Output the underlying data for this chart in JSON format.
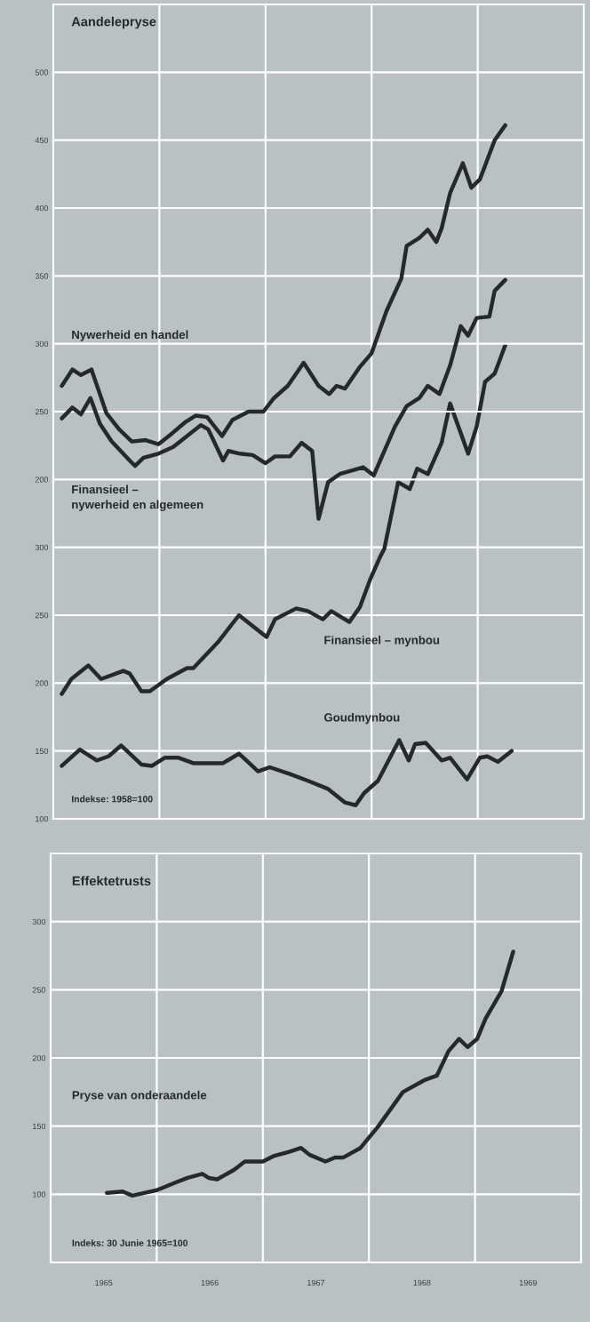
{
  "chart_data": [
    {
      "type": "line",
      "title": "Aandelepryse",
      "annotations": [
        "Indekse: 1958=100"
      ],
      "xlim": [
        1965,
        1970
      ],
      "ylim": [
        100,
        700
      ],
      "yticks": [
        100,
        150,
        200,
        250,
        300
      ],
      "y2lim": [
        -50,
        550
      ],
      "y2ticks": [
        200,
        250,
        300,
        350,
        400,
        450,
        500
      ],
      "xticks": [
        {
          "value": 1966,
          "label": null
        },
        {
          "value": 1967,
          "label": null
        },
        {
          "value": 1968,
          "label": null
        },
        {
          "value": 1969,
          "label": null
        }
      ],
      "tick_labels": "y",
      "grid": true,
      "legend": false,
      "line_style": "solid",
      "series": [
        {
          "name": "Nywerheid en handel",
          "color": "#26292b",
          "axis": "y2",
          "x": [
            1965.08,
            1965.18,
            1965.26,
            1965.36,
            1965.43,
            1965.5,
            1965.62,
            1965.74,
            1965.87,
            1965.99,
            1966.12,
            1966.24,
            1966.34,
            1966.45,
            1966.59,
            1966.69,
            1966.84,
            1966.98,
            1967.08,
            1967.21,
            1967.36,
            1967.5,
            1967.6,
            1967.67,
            1967.75,
            1967.89,
            1968.0,
            1968.14,
            1968.28,
            1968.33,
            1968.45,
            1968.53,
            1968.61,
            1968.66,
            1968.74,
            1968.86,
            1968.94,
            1969.02,
            1969.16,
            1969.26
          ],
          "values": [
            269,
            281,
            277,
            281,
            265,
            249,
            237,
            228,
            229,
            226,
            234,
            242,
            247,
            246,
            232,
            244,
            250,
            250,
            260,
            269,
            286,
            269,
            263,
            269,
            267,
            283,
            293,
            324,
            348,
            372,
            378,
            384,
            375,
            385,
            411,
            433,
            415,
            421,
            450,
            461
          ]
        },
        {
          "name": "Finansieel –\nnywerheid en algemeen",
          "color": "#26292b",
          "axis": "y2",
          "x": [
            1965.08,
            1965.18,
            1965.26,
            1965.35,
            1965.44,
            1965.55,
            1965.72,
            1965.77,
            1965.85,
            1965.99,
            1966.13,
            1966.26,
            1966.39,
            1966.46,
            1966.6,
            1966.65,
            1966.76,
            1966.88,
            1967.0,
            1967.09,
            1967.23,
            1967.34,
            1967.44,
            1967.5,
            1967.59,
            1967.7,
            1967.92,
            1968.02,
            1968.12,
            1968.22,
            1968.33,
            1968.45,
            1968.53,
            1968.64,
            1968.74,
            1968.84,
            1968.91,
            1968.99,
            1969.11,
            1969.16,
            1969.26
          ],
          "values": [
            245,
            253,
            248,
            260,
            241,
            228,
            214,
            210,
            216,
            219,
            224,
            232,
            240,
            237,
            214,
            221,
            219,
            218,
            212,
            217,
            217,
            227,
            221,
            171,
            198,
            204,
            209,
            203,
            221,
            239,
            254,
            260,
            269,
            263,
            284,
            313,
            306,
            319,
            320,
            339,
            347
          ]
        },
        {
          "name": "Finansieel – mynbou",
          "color": "#26292b",
          "axis": "y",
          "x": [
            1965.08,
            1965.17,
            1965.33,
            1965.45,
            1965.66,
            1965.72,
            1965.83,
            1965.91,
            1966.07,
            1966.26,
            1966.32,
            1966.55,
            1966.75,
            1967.01,
            1967.09,
            1967.29,
            1967.4,
            1967.54,
            1967.62,
            1967.79,
            1967.89,
            1967.99,
            1968.08,
            1968.12,
            1968.25,
            1968.36,
            1968.43,
            1968.53,
            1968.66,
            1968.74,
            1968.91,
            1968.99,
            1969.07,
            1969.16,
            1969.26
          ],
          "values": [
            192,
            203,
            213,
            203,
            209,
            207,
            194,
            194,
            203,
            211,
            211,
            230,
            250,
            234,
            247,
            255,
            253,
            247,
            253,
            245,
            256,
            277,
            293,
            299,
            348,
            343,
            358,
            354,
            377,
            406,
            369,
            389,
            422,
            428,
            449
          ]
        },
        {
          "name": "Goudmynbou",
          "color": "#26292b",
          "axis": "y",
          "x": [
            1965.08,
            1965.25,
            1965.41,
            1965.52,
            1965.64,
            1965.83,
            1965.93,
            1966.05,
            1966.18,
            1966.32,
            1966.6,
            1966.75,
            1966.93,
            1967.04,
            1967.23,
            1967.4,
            1967.59,
            1967.75,
            1967.85,
            1967.93,
            1968.06,
            1968.26,
            1968.35,
            1968.41,
            1968.51,
            1968.66,
            1968.74,
            1968.9,
            1969.02,
            1969.09,
            1969.19,
            1969.32
          ],
          "values": [
            139,
            151,
            143,
            146,
            154,
            140,
            139,
            145,
            145,
            141,
            141,
            148,
            135,
            138,
            133,
            128,
            122,
            112,
            110,
            119,
            128,
            158,
            143,
            155,
            156,
            143,
            145,
            129,
            145,
            146,
            142,
            150
          ]
        }
      ]
    },
    {
      "type": "line",
      "title": "Effektetrusts",
      "annotations": [
        "Indeks: 30 Junie 1965=100"
      ],
      "xlim": [
        1965,
        1970
      ],
      "ylim": [
        50,
        350
      ],
      "yticks": [
        100,
        150,
        200,
        250,
        300
      ],
      "xticks": [
        {
          "value": 1965.5,
          "label": "1965"
        },
        {
          "value": 1966,
          "label": null
        },
        {
          "value": 1966.5,
          "label": "1966"
        },
        {
          "value": 1967,
          "label": null
        },
        {
          "value": 1967.5,
          "label": "1967"
        },
        {
          "value": 1968,
          "label": null
        },
        {
          "value": 1968.5,
          "label": "1968"
        },
        {
          "value": 1969,
          "label": null
        },
        {
          "value": 1969.5,
          "label": "1969"
        }
      ],
      "grid": true,
      "legend": false,
      "line_style": "solid",
      "series": [
        {
          "name": "Pryse van onderaandele",
          "color": "#26292b",
          "x": [
            1965.53,
            1965.68,
            1965.77,
            1965.88,
            1966.0,
            1966.19,
            1966.29,
            1966.43,
            1966.49,
            1966.57,
            1966.73,
            1966.83,
            1967.0,
            1967.1,
            1967.24,
            1967.36,
            1967.44,
            1967.59,
            1967.68,
            1967.76,
            1967.92,
            1968.09,
            1968.32,
            1968.53,
            1968.64,
            1968.75,
            1968.85,
            1968.93,
            1969.02,
            1969.1,
            1969.25,
            1969.36
          ],
          "values": [
            101,
            102,
            99,
            101,
            103,
            109,
            112,
            115,
            112,
            111,
            118,
            124,
            124,
            128,
            131,
            134,
            129,
            124,
            127,
            127,
            134,
            150,
            175,
            184,
            187,
            205,
            214,
            208,
            214,
            229,
            249,
            278
          ]
        }
      ]
    }
  ]
}
